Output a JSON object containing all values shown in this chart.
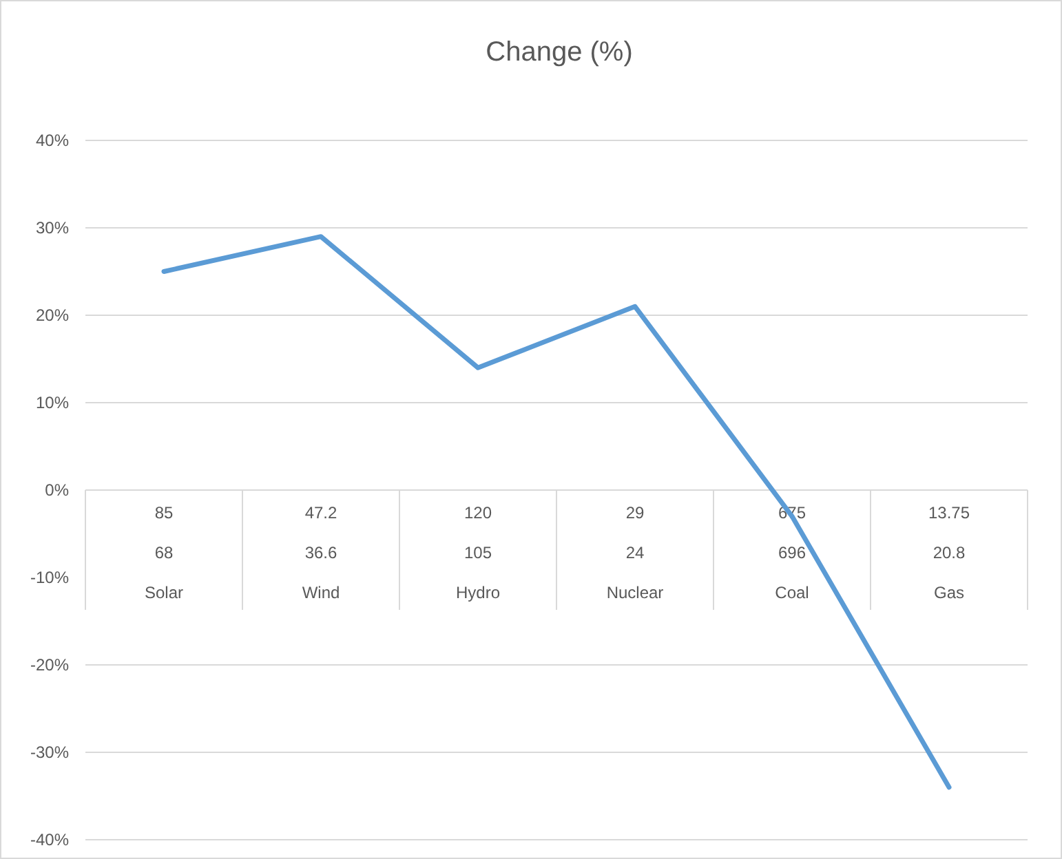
{
  "chart_data": {
    "type": "line",
    "title": "Change (%)",
    "categories": [
      "Solar",
      "Wind",
      "Hydro",
      "Nuclear",
      "Coal",
      "Gas"
    ],
    "series": [
      {
        "color": "#5b9bd5",
        "values": [
          25,
          29,
          14,
          21,
          -3,
          -34
        ]
      }
    ],
    "annotations": [
      "85",
      "47.2",
      "120",
      "29",
      "675",
      "13.75",
      "68",
      "36.6",
      "105",
      "24",
      "696",
      "20.8"
    ],
    "ylim": [
      -40,
      40
    ],
    "yticks": [
      {
        "value": -40,
        "label": "-40%"
      },
      {
        "value": -30,
        "label": "-30%"
      },
      {
        "value": -20,
        "label": "-20%"
      },
      {
        "value": -10,
        "label": "-10%"
      },
      {
        "value": 0,
        "label": "0%"
      },
      {
        "value": 10,
        "label": "10%"
      },
      {
        "value": 20,
        "label": "20%"
      },
      {
        "value": 30,
        "label": "30%"
      },
      {
        "value": 40,
        "label": "40%"
      }
    ],
    "grid": "y",
    "marker": "none",
    "line_style": "solid"
  }
}
